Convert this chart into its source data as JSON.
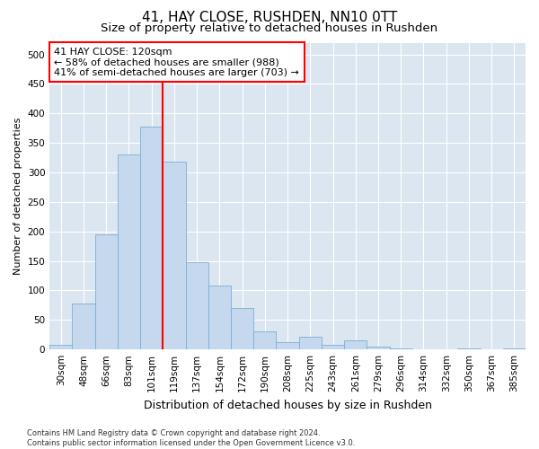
{
  "title1": "41, HAY CLOSE, RUSHDEN, NN10 0TT",
  "title2": "Size of property relative to detached houses in Rushden",
  "xlabel": "Distribution of detached houses by size in Rushden",
  "ylabel": "Number of detached properties",
  "categories": [
    "30sqm",
    "48sqm",
    "66sqm",
    "83sqm",
    "101sqm",
    "119sqm",
    "137sqm",
    "154sqm",
    "172sqm",
    "190sqm",
    "208sqm",
    "225sqm",
    "243sqm",
    "261sqm",
    "279sqm",
    "296sqm",
    "314sqm",
    "332sqm",
    "350sqm",
    "367sqm",
    "385sqm"
  ],
  "values": [
    8,
    78,
    195,
    330,
    378,
    318,
    148,
    108,
    70,
    30,
    12,
    22,
    8,
    15,
    5,
    2,
    0,
    1,
    2,
    0,
    2
  ],
  "bar_color": "#c5d8ee",
  "bar_edge_color": "#7aafd4",
  "vline_x": 4.5,
  "vline_color": "red",
  "annotation_text": "41 HAY CLOSE: 120sqm\n← 58% of detached houses are smaller (988)\n41% of semi-detached houses are larger (703) →",
  "ylim": [
    0,
    520
  ],
  "yticks": [
    0,
    50,
    100,
    150,
    200,
    250,
    300,
    350,
    400,
    450,
    500
  ],
  "background_color": "#dce6f0",
  "grid_color": "#ffffff",
  "footer_text": "Contains HM Land Registry data © Crown copyright and database right 2024.\nContains public sector information licensed under the Open Government Licence v3.0.",
  "title1_fontsize": 11,
  "title2_fontsize": 9.5,
  "xlabel_fontsize": 9,
  "ylabel_fontsize": 8,
  "tick_fontsize": 7.5,
  "annotation_fontsize": 8,
  "footer_fontsize": 6
}
